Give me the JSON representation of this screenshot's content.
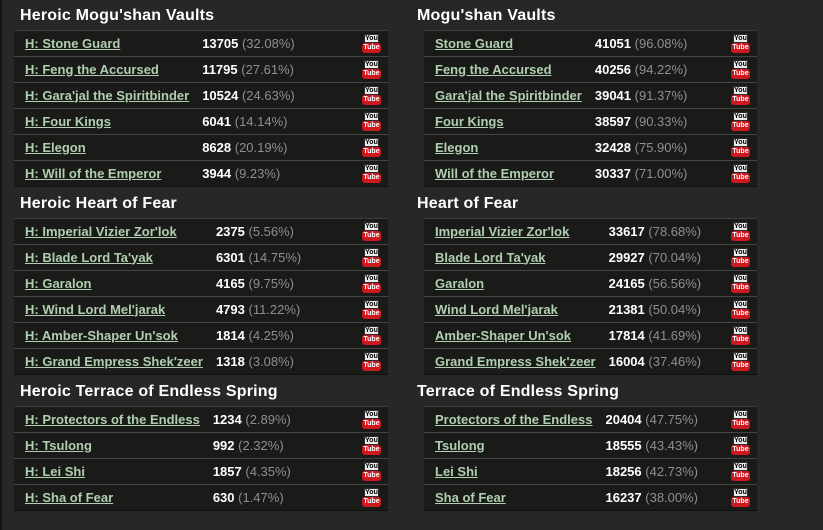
{
  "colors": {
    "page_background": "#272725",
    "row_background": "#1a1a18",
    "row_separator": "#454543",
    "boss_link_green": "#b0cfb0",
    "kill_count_white": "#ffffff",
    "percent_gray": "#8f8f8f",
    "header_white": "#ffffff",
    "youtube_red": "#cc181e"
  },
  "youtube": {
    "top_label": "You",
    "bottom_label": "Tube"
  },
  "columns": [
    {
      "id": "heroic",
      "sections": [
        {
          "title": "Heroic Mogu'shan Vaults",
          "bosses": [
            {
              "name": "H: Stone Guard",
              "kills": "13705",
              "percent": "(32.08%)"
            },
            {
              "name": "H: Feng the Accursed",
              "kills": "11795",
              "percent": "(27.61%)"
            },
            {
              "name": "H: Gara'jal the Spiritbinder",
              "kills": "10524",
              "percent": "(24.63%)"
            },
            {
              "name": "H: Four Kings",
              "kills": "6041",
              "percent": "(14.14%)"
            },
            {
              "name": "H: Elegon",
              "kills": "8628",
              "percent": "(20.19%)"
            },
            {
              "name": "H: Will of the Emperor",
              "kills": "3944",
              "percent": "(9.23%)"
            }
          ]
        },
        {
          "title": "Heroic Heart of Fear",
          "bosses": [
            {
              "name": "H: Imperial Vizier Zor'lok",
              "kills": "2375",
              "percent": "(5.56%)"
            },
            {
              "name": "H: Blade Lord Ta'yak",
              "kills": "6301",
              "percent": "(14.75%)"
            },
            {
              "name": "H: Garalon",
              "kills": "4165",
              "percent": "(9.75%)"
            },
            {
              "name": "H: Wind Lord Mel'jarak",
              "kills": "4793",
              "percent": "(11.22%)"
            },
            {
              "name": "H: Amber-Shaper Un'sok",
              "kills": "1814",
              "percent": "(4.25%)"
            },
            {
              "name": "H: Grand Empress Shek'zeer",
              "kills": "1318",
              "percent": "(3.08%)"
            }
          ]
        },
        {
          "title": "Heroic Terrace of Endless Spring",
          "bosses": [
            {
              "name": "H: Protectors of the Endless",
              "kills": "1234",
              "percent": "(2.89%)"
            },
            {
              "name": "H: Tsulong",
              "kills": "992",
              "percent": "(2.32%)"
            },
            {
              "name": "H: Lei Shi",
              "kills": "1857",
              "percent": "(4.35%)"
            },
            {
              "name": "H: Sha of Fear",
              "kills": "630",
              "percent": "(1.47%)"
            }
          ]
        }
      ]
    },
    {
      "id": "normal",
      "sections": [
        {
          "title": "Mogu'shan Vaults",
          "bosses": [
            {
              "name": "Stone Guard",
              "kills": "41051",
              "percent": "(96.08%)"
            },
            {
              "name": "Feng the Accursed",
              "kills": "40256",
              "percent": "(94.22%)"
            },
            {
              "name": "Gara'jal the Spiritbinder",
              "kills": "39041",
              "percent": "(91.37%)"
            },
            {
              "name": "Four Kings",
              "kills": "38597",
              "percent": "(90.33%)"
            },
            {
              "name": "Elegon",
              "kills": "32428",
              "percent": "(75.90%)"
            },
            {
              "name": "Will of the Emperor",
              "kills": "30337",
              "percent": "(71.00%)"
            }
          ]
        },
        {
          "title": "Heart of Fear",
          "bosses": [
            {
              "name": "Imperial Vizier Zor'lok",
              "kills": "33617",
              "percent": "(78.68%)"
            },
            {
              "name": "Blade Lord Ta'yak",
              "kills": "29927",
              "percent": "(70.04%)"
            },
            {
              "name": "Garalon",
              "kills": "24165",
              "percent": "(56.56%)"
            },
            {
              "name": "Wind Lord Mel'jarak",
              "kills": "21381",
              "percent": "(50.04%)"
            },
            {
              "name": "Amber-Shaper Un'sok",
              "kills": "17814",
              "percent": "(41.69%)"
            },
            {
              "name": "Grand Empress Shek'zeer",
              "kills": "16004",
              "percent": "(37.46%)"
            }
          ]
        },
        {
          "title": "Terrace of Endless Spring",
          "bosses": [
            {
              "name": "Protectors of the Endless",
              "kills": "20404",
              "percent": "(47.75%)"
            },
            {
              "name": "Tsulong",
              "kills": "18555",
              "percent": "(43.43%)"
            },
            {
              "name": "Lei Shi",
              "kills": "18256",
              "percent": "(42.73%)"
            },
            {
              "name": "Sha of Fear",
              "kills": "16237",
              "percent": "(38.00%)"
            }
          ]
        }
      ]
    }
  ]
}
